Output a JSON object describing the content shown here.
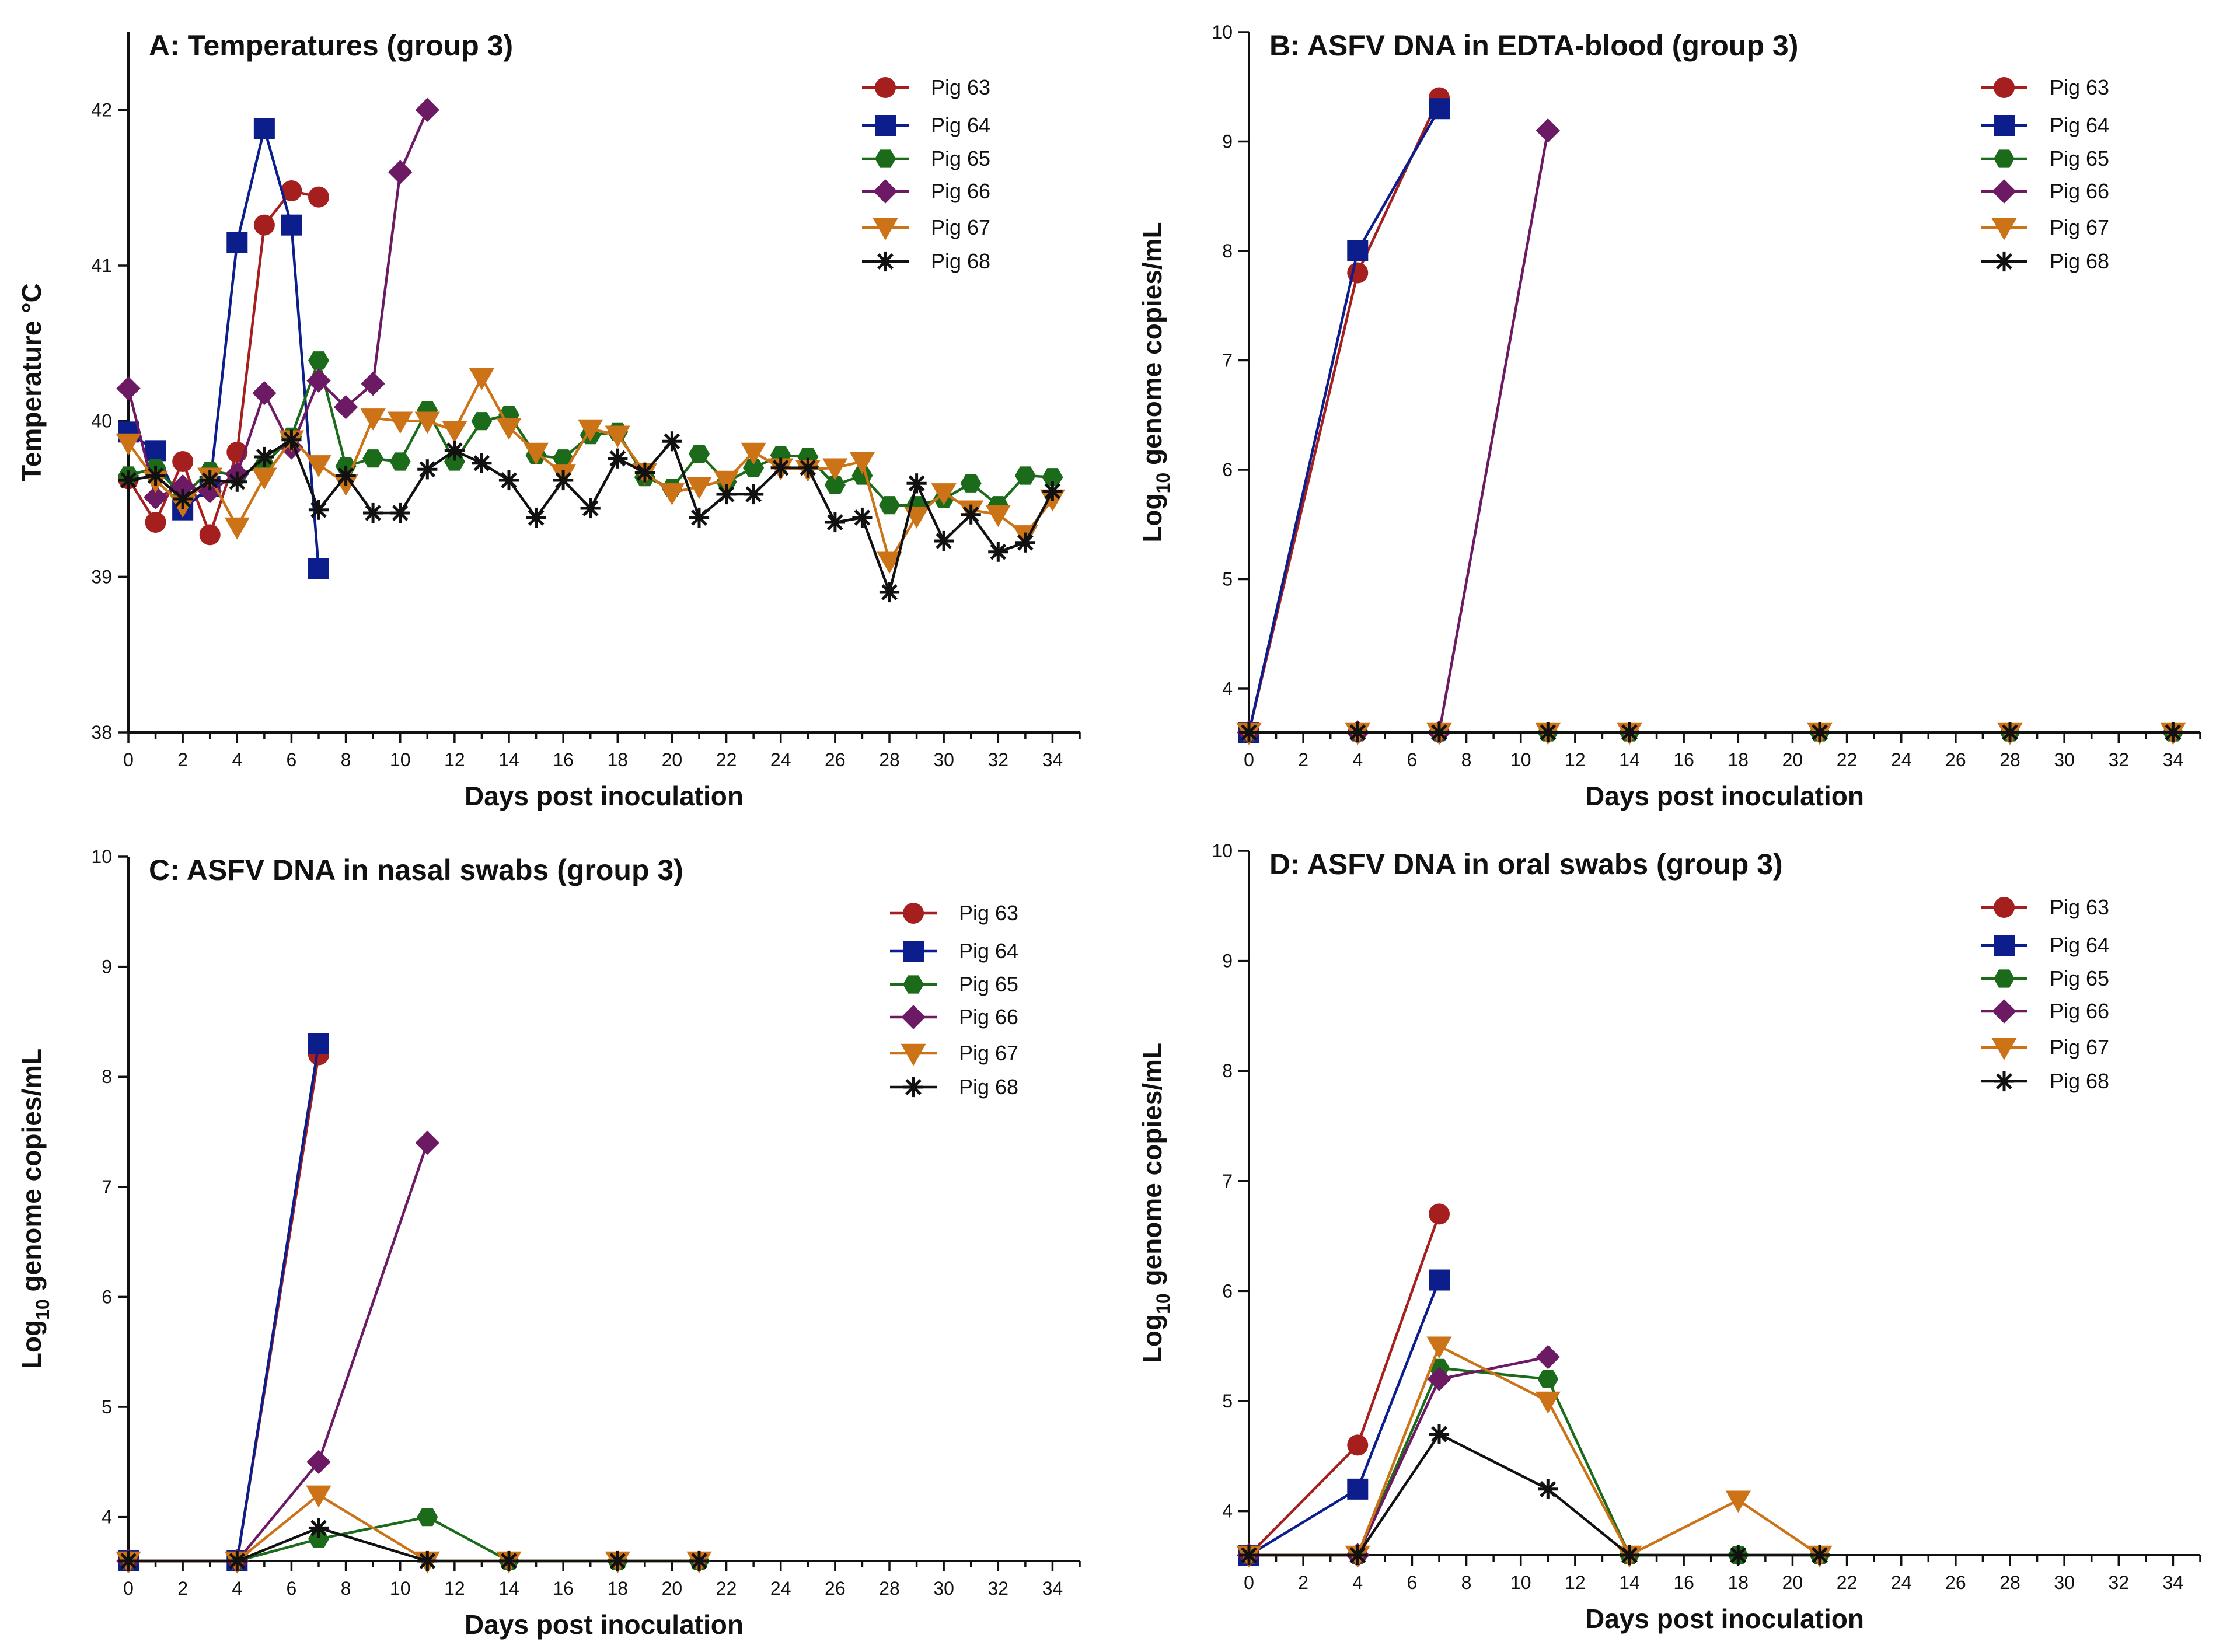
{
  "figure": {
    "series_colors": {
      "Pig 63": "#A51F1F",
      "Pig 64": "#0C1E8C",
      "Pig 65": "#1B6B1B",
      "Pig 66": "#6B1A63",
      "Pig 67": "#CC7317",
      "Pig 68": "#111111"
    },
    "series_markers": {
      "Pig 63": "circle",
      "Pig 64": "square",
      "Pig 65": "hexagon",
      "Pig 66": "diamond",
      "Pig 67": "triangle-down",
      "Pig 68": "asterisk"
    }
  },
  "chart_data": [
    {
      "id": "A",
      "type": "line",
      "title": "A: Temperatures (group 3)",
      "xlabel": "Days post inoculation",
      "ylabel": "Temperature °C",
      "xlim": [
        0,
        35
      ],
      "ylim": [
        38,
        42.5
      ],
      "xticks": [
        "0",
        "2",
        "4",
        "6",
        "8",
        "10",
        "12",
        "14",
        "16",
        "18",
        "20",
        "22",
        "24",
        "26",
        "28",
        "30",
        "32",
        "34"
      ],
      "yticks": [
        "38",
        "39",
        "40",
        "41",
        "42"
      ],
      "legend": [
        "Pig 63",
        "Pig 64",
        "Pig 65",
        "Pig 66",
        "Pig 67",
        "Pig 68"
      ],
      "legend_position": "top-right",
      "series": [
        {
          "name": "Pig 63",
          "x": [
            0,
            1,
            2,
            3,
            4,
            5,
            6,
            7
          ],
          "values": [
            39.63,
            39.35,
            39.74,
            39.27,
            39.8,
            41.26,
            41.48,
            41.44
          ]
        },
        {
          "name": "Pig 64",
          "x": [
            0,
            1,
            2,
            3,
            4,
            5,
            6,
            7
          ],
          "values": [
            39.93,
            39.81,
            39.43,
            39.58,
            41.15,
            41.88,
            41.26,
            39.05
          ]
        },
        {
          "name": "Pig 65",
          "x": [
            0,
            1,
            2,
            3,
            4,
            5,
            6,
            7,
            8,
            9,
            10,
            11,
            12,
            13,
            14,
            15,
            16,
            17,
            18,
            19,
            20,
            21,
            22,
            23,
            24,
            25,
            26,
            27,
            28,
            29,
            30,
            31,
            32,
            33,
            34
          ],
          "values": [
            39.65,
            39.7,
            39.52,
            39.68,
            39.65,
            39.72,
            39.9,
            40.39,
            39.71,
            39.76,
            39.74,
            40.07,
            39.74,
            40.0,
            40.04,
            39.78,
            39.76,
            39.91,
            39.93,
            39.64,
            39.57,
            39.79,
            39.61,
            39.7,
            39.78,
            39.77,
            39.59,
            39.65,
            39.46,
            39.46,
            39.5,
            39.6,
            39.46,
            39.65,
            39.64
          ]
        },
        {
          "name": "Pig 66",
          "x": [
            0,
            1,
            2,
            3,
            4,
            5,
            6,
            7,
            8,
            9,
            10,
            11
          ],
          "values": [
            40.21,
            39.51,
            39.58,
            39.55,
            39.66,
            40.18,
            39.83,
            40.26,
            40.09,
            40.24,
            41.6,
            42.0
          ]
        },
        {
          "name": "Pig 67",
          "x": [
            0,
            1,
            2,
            3,
            4,
            5,
            6,
            7,
            8,
            9,
            10,
            11,
            12,
            13,
            14,
            15,
            16,
            17,
            18,
            19,
            20,
            21,
            22,
            23,
            24,
            25,
            26,
            27,
            28,
            29,
            30,
            31,
            32,
            33,
            34
          ],
          "values": [
            39.86,
            39.62,
            39.46,
            39.64,
            39.32,
            39.64,
            39.88,
            39.72,
            39.6,
            40.02,
            40.0,
            40.0,
            39.94,
            40.28,
            39.96,
            39.8,
            39.66,
            39.95,
            39.91,
            39.67,
            39.54,
            39.58,
            39.62,
            39.8,
            39.7,
            39.69,
            39.7,
            39.74,
            39.1,
            39.39,
            39.54,
            39.43,
            39.4,
            39.27,
            39.5
          ]
        },
        {
          "name": "Pig 68",
          "x": [
            0,
            1,
            2,
            3,
            4,
            5,
            6,
            7,
            8,
            9,
            10,
            11,
            12,
            13,
            14,
            15,
            16,
            17,
            18,
            19,
            20,
            21,
            22,
            23,
            24,
            25,
            26,
            27,
            28,
            29,
            30,
            31,
            32,
            33,
            34
          ],
          "values": [
            39.62,
            39.65,
            39.5,
            39.62,
            39.61,
            39.77,
            39.88,
            39.43,
            39.65,
            39.41,
            39.41,
            39.69,
            39.81,
            39.73,
            39.62,
            39.38,
            39.62,
            39.44,
            39.76,
            39.67,
            39.87,
            39.38,
            39.53,
            39.53,
            39.7,
            39.7,
            39.35,
            39.38,
            38.9,
            39.6,
            39.23,
            39.4,
            39.16,
            39.22,
            39.55
          ]
        }
      ]
    },
    {
      "id": "B",
      "type": "line",
      "title": "B: ASFV DNA in EDTA-blood (group 3)",
      "xlabel": "Days post inoculation",
      "ylabel": "Log10 genome copies/mL",
      "ylabel_base": "Log",
      "ylabel_sub": "10",
      "ylabel_rest": " genome copies/mL",
      "xlim": [
        0,
        35
      ],
      "ylim": [
        3.6,
        10
      ],
      "xticks": [
        "0",
        "2",
        "4",
        "6",
        "8",
        "10",
        "12",
        "14",
        "16",
        "18",
        "20",
        "22",
        "24",
        "26",
        "28",
        "30",
        "32",
        "34"
      ],
      "yticks": [
        "4",
        "5",
        "6",
        "7",
        "8",
        "9",
        "10"
      ],
      "legend": [
        "Pig 63",
        "Pig 64",
        "Pig 65",
        "Pig 66",
        "Pig 67",
        "Pig 68"
      ],
      "legend_position": "top-right",
      "series": [
        {
          "name": "Pig 63",
          "x": [
            0,
            4,
            7
          ],
          "values": [
            3.6,
            7.8,
            9.4
          ]
        },
        {
          "name": "Pig 64",
          "x": [
            0,
            4,
            7
          ],
          "values": [
            3.6,
            8.0,
            9.3
          ]
        },
        {
          "name": "Pig 65",
          "x": [
            0,
            4,
            7,
            11,
            14,
            21,
            28,
            34
          ],
          "values": [
            3.6,
            3.6,
            3.6,
            3.6,
            3.6,
            3.6,
            3.6,
            3.6
          ]
        },
        {
          "name": "Pig 66",
          "x": [
            0,
            4,
            7,
            11
          ],
          "values": [
            3.6,
            3.6,
            3.6,
            9.1
          ]
        },
        {
          "name": "Pig 67",
          "x": [
            0,
            4,
            7,
            11,
            14,
            21,
            28,
            34
          ],
          "values": [
            3.6,
            3.6,
            3.6,
            3.6,
            3.6,
            3.6,
            3.6,
            3.6
          ]
        },
        {
          "name": "Pig 68",
          "x": [
            0,
            4,
            7,
            11,
            14,
            21,
            28,
            34
          ],
          "values": [
            3.6,
            3.6,
            3.6,
            3.6,
            3.6,
            3.6,
            3.6,
            3.6
          ]
        }
      ]
    },
    {
      "id": "C",
      "type": "line",
      "title": "C: ASFV DNA in nasal swabs (group 3)",
      "xlabel": "Days post inoculation",
      "ylabel": "Log10 genome copies/mL",
      "ylabel_base": "Log",
      "ylabel_sub": "10",
      "ylabel_rest": " genome copies/mL",
      "xlim": [
        0,
        35
      ],
      "ylim": [
        3.6,
        10
      ],
      "xticks": [
        "0",
        "2",
        "4",
        "6",
        "8",
        "10",
        "12",
        "14",
        "16",
        "18",
        "20",
        "22",
        "24",
        "26",
        "28",
        "30",
        "32",
        "34"
      ],
      "yticks": [
        "4",
        "5",
        "6",
        "7",
        "8",
        "9",
        "10"
      ],
      "legend": [
        "Pig 63",
        "Pig 64",
        "Pig 65",
        "Pig 66",
        "Pig 67",
        "Pig 68"
      ],
      "legend_position": "top-right",
      "series": [
        {
          "name": "Pig 63",
          "x": [
            0,
            4,
            7
          ],
          "values": [
            3.6,
            3.6,
            8.2
          ]
        },
        {
          "name": "Pig 64",
          "x": [
            0,
            4,
            7
          ],
          "values": [
            3.6,
            3.6,
            8.3
          ]
        },
        {
          "name": "Pig 65",
          "x": [
            0,
            4,
            7,
            11,
            14,
            18,
            21
          ],
          "values": [
            3.6,
            3.6,
            3.8,
            4.0,
            3.6,
            3.6,
            3.6
          ]
        },
        {
          "name": "Pig 66",
          "x": [
            0,
            4,
            7,
            11
          ],
          "values": [
            3.6,
            3.6,
            4.5,
            7.4
          ]
        },
        {
          "name": "Pig 67",
          "x": [
            0,
            4,
            7,
            11,
            14,
            18,
            21
          ],
          "values": [
            3.6,
            3.6,
            4.2,
            3.6,
            3.6,
            3.6,
            3.6
          ]
        },
        {
          "name": "Pig 68",
          "x": [
            0,
            4,
            7,
            11,
            14,
            18,
            21
          ],
          "values": [
            3.6,
            3.6,
            3.9,
            3.6,
            3.6,
            3.6,
            3.6
          ]
        }
      ]
    },
    {
      "id": "D",
      "type": "line",
      "title": "D: ASFV DNA in oral swabs (group 3)",
      "xlabel": "Days post inoculation",
      "ylabel": "Log10 genome copies/mL",
      "ylabel_base": "Log",
      "ylabel_sub": "10",
      "ylabel_rest": " genome copies/mL",
      "xlim": [
        0,
        35
      ],
      "ylim": [
        3.6,
        10
      ],
      "xticks": [
        "0",
        "2",
        "4",
        "6",
        "8",
        "10",
        "12",
        "14",
        "16",
        "18",
        "20",
        "22",
        "24",
        "26",
        "28",
        "30",
        "32",
        "34"
      ],
      "yticks": [
        "4",
        "5",
        "6",
        "7",
        "8",
        "9",
        "10"
      ],
      "legend": [
        "Pig 63",
        "Pig 64",
        "Pig 65",
        "Pig 66",
        "Pig 67",
        "Pig 68"
      ],
      "legend_position": "top-right",
      "series": [
        {
          "name": "Pig 63",
          "x": [
            0,
            4,
            7
          ],
          "values": [
            3.6,
            4.6,
            6.7
          ]
        },
        {
          "name": "Pig 64",
          "x": [
            0,
            4,
            7
          ],
          "values": [
            3.6,
            4.2,
            6.1
          ]
        },
        {
          "name": "Pig 65",
          "x": [
            0,
            4,
            7,
            11,
            14,
            18,
            21
          ],
          "values": [
            3.6,
            3.6,
            5.3,
            5.2,
            3.6,
            3.6,
            3.6
          ]
        },
        {
          "name": "Pig 66",
          "x": [
            0,
            4,
            7,
            11
          ],
          "values": [
            3.6,
            3.6,
            5.2,
            5.4
          ]
        },
        {
          "name": "Pig 67",
          "x": [
            0,
            4,
            7,
            11,
            14,
            18,
            21
          ],
          "values": [
            3.6,
            3.6,
            5.5,
            5.0,
            3.6,
            4.1,
            3.6
          ]
        },
        {
          "name": "Pig 68",
          "x": [
            0,
            4,
            7,
            11,
            14,
            18,
            21
          ],
          "values": [
            3.6,
            3.6,
            4.7,
            4.2,
            3.6,
            3.6,
            3.6
          ]
        }
      ]
    }
  ]
}
